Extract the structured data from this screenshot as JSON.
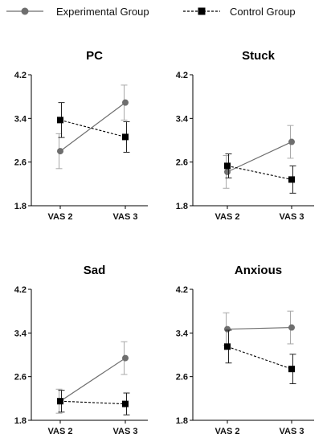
{
  "legend": {
    "experimental_label": "Experimental Group",
    "control_label": "Control Group"
  },
  "colors": {
    "experimental": "#6e6e6e",
    "control": "#000000",
    "axis": "#000000",
    "errorbar_experimental": "#a8a8a8",
    "errorbar_control": "#222222"
  },
  "chart_data": [
    {
      "type": "line",
      "title": "PC",
      "categories": [
        "VAS 2",
        "VAS 3"
      ],
      "ylim": [
        1.8,
        4.2
      ],
      "yticks": [
        "1.8",
        "2.6",
        "3.4",
        "4.2"
      ],
      "series": [
        {
          "name": "Experimental Group",
          "values": [
            2.8,
            3.69
          ],
          "errors": [
            0.32,
            0.32
          ]
        },
        {
          "name": "Control Group",
          "values": [
            3.37,
            3.06
          ],
          "errors": [
            0.32,
            0.28
          ]
        }
      ]
    },
    {
      "type": "line",
      "title": "Stuck",
      "categories": [
        "VAS 2",
        "VAS 3"
      ],
      "ylim": [
        1.8,
        4.2
      ],
      "yticks": [
        "1.8",
        "2.6",
        "3.4",
        "4.2"
      ],
      "series": [
        {
          "name": "Experimental Group",
          "values": [
            2.42,
            2.97
          ],
          "errors": [
            0.3,
            0.3
          ]
        },
        {
          "name": "Control Group",
          "values": [
            2.53,
            2.28
          ],
          "errors": [
            0.22,
            0.25
          ]
        }
      ]
    },
    {
      "type": "line",
      "title": "Sad",
      "categories": [
        "VAS 2",
        "VAS 3"
      ],
      "ylim": [
        1.8,
        4.2
      ],
      "yticks": [
        "1.8",
        "2.6",
        "3.4",
        "4.2"
      ],
      "series": [
        {
          "name": "Experimental Group",
          "values": [
            2.15,
            2.94
          ],
          "errors": [
            0.22,
            0.3
          ]
        },
        {
          "name": "Control Group",
          "values": [
            2.15,
            2.1
          ],
          "errors": [
            0.2,
            0.2
          ]
        }
      ]
    },
    {
      "type": "line",
      "title": "Anxious",
      "categories": [
        "VAS 2",
        "VAS 3"
      ],
      "ylim": [
        1.8,
        4.2
      ],
      "yticks": [
        "1.8",
        "2.6",
        "3.4",
        "4.2"
      ],
      "series": [
        {
          "name": "Experimental Group",
          "values": [
            3.47,
            3.5
          ],
          "errors": [
            0.3,
            0.3
          ]
        },
        {
          "name": "Control Group",
          "values": [
            3.15,
            2.74
          ],
          "errors": [
            0.3,
            0.27
          ]
        }
      ]
    }
  ]
}
